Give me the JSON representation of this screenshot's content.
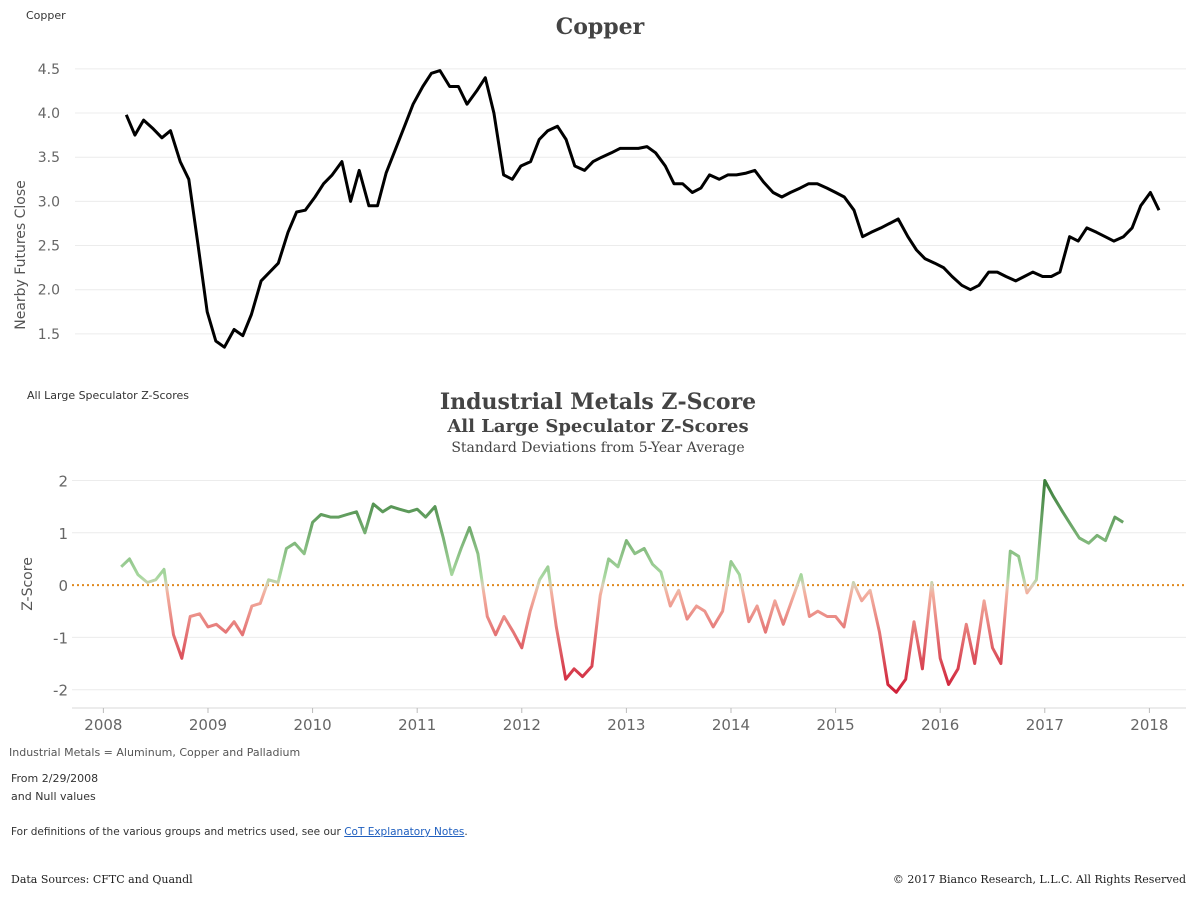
{
  "top_label": "Copper",
  "mid_label": "All Large Speculator Z-Scores",
  "footer": {
    "definition": "Industrial Metals = Aluminum, Copper and Palladium",
    "from_line1": "From 2/29/2008",
    "from_line2": "and Null values",
    "notes_prefix": "For definitions of the various groups and metrics used, see our ",
    "notes_link": "CoT Explanatory Notes",
    "notes_suffix": ".",
    "sources": "Data Sources: CFTC and Quandl",
    "copyright": "© 2017 Bianco Research, L.L.C. All Rights Reserved"
  },
  "colors": {
    "copper_line": "#000000",
    "zero_line": "#e08a1e",
    "positive_dark": "#3a7d3a",
    "positive_light": "#a8d8a0",
    "negative_light": "#f3b0a0",
    "negative_dark": "#d0223a"
  },
  "chart_data": [
    {
      "type": "line",
      "title": "Copper",
      "ylabel": "Nearby Futures Close",
      "xlabel": "",
      "ylim": [
        1.25,
        4.6
      ],
      "xlim": [
        2008.0,
        2018.0
      ],
      "yticks": [
        "1.5",
        "2.0",
        "2.5",
        "3.0",
        "3.5",
        "4.0",
        "4.5"
      ],
      "grid": true,
      "series": [
        {
          "x": [
            2008.17,
            2008.25,
            2008.33,
            2008.42,
            2008.5,
            2008.58,
            2008.67,
            2008.75,
            2008.83,
            2008.92,
            2009.0,
            2009.08,
            2009.17,
            2009.25,
            2009.33,
            2009.42,
            2009.5,
            2009.58,
            2009.67,
            2009.75,
            2009.83,
            2009.92,
            2010.0,
            2010.08,
            2010.17,
            2010.25,
            2010.33,
            2010.42,
            2010.5,
            2010.58,
            2010.67,
            2010.75,
            2010.83,
            2010.92,
            2011.0,
            2011.08,
            2011.17,
            2011.25,
            2011.33,
            2011.42,
            2011.5,
            2011.58,
            2011.67,
            2011.75,
            2011.83,
            2011.92,
            2012.0,
            2012.08,
            2012.17,
            2012.25,
            2012.33,
            2012.42,
            2012.5,
            2012.58,
            2012.67,
            2012.75,
            2012.83,
            2012.92,
            2013.0,
            2013.08,
            2013.17,
            2013.25,
            2013.33,
            2013.42,
            2013.5,
            2013.58,
            2013.67,
            2013.75,
            2013.83,
            2013.92,
            2014.0,
            2014.08,
            2014.17,
            2014.25,
            2014.33,
            2014.42,
            2014.5,
            2014.58,
            2014.67,
            2014.75,
            2014.83,
            2014.92,
            2015.0,
            2015.08,
            2015.17,
            2015.25,
            2015.33,
            2015.42,
            2015.5,
            2015.58,
            2015.67,
            2015.75,
            2015.83,
            2015.92,
            2016.0,
            2016.08,
            2016.17,
            2016.25,
            2016.33,
            2016.42,
            2016.5,
            2016.58,
            2016.67,
            2016.75,
            2016.83,
            2016.92,
            2017.0,
            2017.08,
            2017.17,
            2017.25,
            2017.33,
            2017.42,
            2017.5,
            2017.58,
            2017.67,
            2017.75
          ],
          "values": [
            3.98,
            3.75,
            3.92,
            3.82,
            3.72,
            3.8,
            3.45,
            3.25,
            2.55,
            1.75,
            1.42,
            1.35,
            1.55,
            1.48,
            1.72,
            2.1,
            2.2,
            2.3,
            2.65,
            2.88,
            2.9,
            3.05,
            3.2,
            3.3,
            3.45,
            3.0,
            3.35,
            2.95,
            2.95,
            3.32,
            3.6,
            3.85,
            4.1,
            4.3,
            4.45,
            4.48,
            4.3,
            4.3,
            4.1,
            4.25,
            4.4,
            4.0,
            3.3,
            3.25,
            3.4,
            3.45,
            3.7,
            3.8,
            3.85,
            3.7,
            3.4,
            3.35,
            3.45,
            3.5,
            3.55,
            3.6,
            3.6,
            3.6,
            3.62,
            3.55,
            3.4,
            3.2,
            3.2,
            3.1,
            3.15,
            3.3,
            3.25,
            3.3,
            3.3,
            3.32,
            3.35,
            3.22,
            3.1,
            3.05,
            3.1,
            3.15,
            3.2,
            3.2,
            3.15,
            3.1,
            3.05,
            2.9,
            2.6,
            2.65,
            2.7,
            2.75,
            2.8,
            2.6,
            2.45,
            2.35,
            2.3,
            2.25,
            2.15,
            2.05,
            2.0,
            2.05,
            2.2,
            2.2,
            2.15,
            2.1,
            2.15,
            2.2,
            2.15,
            2.15,
            2.2,
            2.6,
            2.55,
            2.7,
            2.65,
            2.6,
            2.55,
            2.6,
            2.7,
            2.95,
            3.1,
            2.9
          ]
        }
      ]
    },
    {
      "type": "line",
      "title": "Industrial Metals Z-Score",
      "subtitle": "All Large Speculator Z-Scores",
      "subtitle2": "Standard Deviations from 5-Year Average",
      "ylabel": "Z-Score",
      "xlabel": "",
      "ylim": [
        -2.35,
        2.2
      ],
      "xlim": [
        2007.7,
        2018.35
      ],
      "yticks": [
        "2",
        "1",
        "0",
        "-1",
        "-2"
      ],
      "ytick_values": [
        2,
        1,
        0,
        -1,
        -2
      ],
      "xticks": [
        "2008",
        "2009",
        "2010",
        "2011",
        "2012",
        "2013",
        "2014",
        "2015",
        "2016",
        "2017",
        "2018"
      ],
      "xtick_values": [
        2008,
        2009,
        2010,
        2011,
        2012,
        2013,
        2014,
        2015,
        2016,
        2017,
        2018
      ],
      "zero_reference_line": true,
      "grid": true,
      "series": [
        {
          "x": [
            2008.17,
            2008.25,
            2008.33,
            2008.42,
            2008.5,
            2008.58,
            2008.67,
            2008.75,
            2008.83,
            2008.92,
            2009.0,
            2009.08,
            2009.17,
            2009.25,
            2009.33,
            2009.42,
            2009.5,
            2009.58,
            2009.67,
            2009.75,
            2009.83,
            2009.92,
            2010.0,
            2010.08,
            2010.17,
            2010.25,
            2010.33,
            2010.42,
            2010.5,
            2010.58,
            2010.67,
            2010.75,
            2010.83,
            2010.92,
            2011.0,
            2011.08,
            2011.17,
            2011.25,
            2011.33,
            2011.42,
            2011.5,
            2011.58,
            2011.67,
            2011.75,
            2011.83,
            2011.92,
            2012.0,
            2012.08,
            2012.17,
            2012.25,
            2012.33,
            2012.42,
            2012.5,
            2012.58,
            2012.67,
            2012.75,
            2012.83,
            2012.92,
            2013.0,
            2013.08,
            2013.17,
            2013.25,
            2013.33,
            2013.42,
            2013.5,
            2013.58,
            2013.67,
            2013.75,
            2013.83,
            2013.92,
            2014.0,
            2014.08,
            2014.17,
            2014.25,
            2014.33,
            2014.42,
            2014.5,
            2014.58,
            2014.67,
            2014.75,
            2014.83,
            2014.92,
            2015.0,
            2015.08,
            2015.17,
            2015.25,
            2015.33,
            2015.42,
            2015.5,
            2015.58,
            2015.67,
            2015.75,
            2015.83,
            2015.92,
            2016.0,
            2016.08,
            2016.17,
            2016.25,
            2016.33,
            2016.42,
            2016.5,
            2016.58,
            2016.67,
            2016.75,
            2016.83,
            2016.92,
            2017.0,
            2017.08,
            2017.17,
            2017.25,
            2017.33,
            2017.42,
            2017.5,
            2017.58,
            2017.67,
            2017.75
          ],
          "values": [
            0.35,
            0.5,
            0.2,
            0.05,
            0.1,
            0.3,
            -0.95,
            -1.4,
            -0.6,
            -0.55,
            -0.8,
            -0.75,
            -0.9,
            -0.7,
            -0.95,
            -0.4,
            -0.35,
            0.1,
            0.05,
            0.7,
            0.8,
            0.6,
            1.2,
            1.35,
            1.3,
            1.3,
            1.35,
            1.4,
            1.0,
            1.55,
            1.4,
            1.5,
            1.45,
            1.4,
            1.45,
            1.3,
            1.5,
            0.9,
            0.2,
            0.7,
            1.1,
            0.6,
            -0.6,
            -0.95,
            -0.6,
            -0.9,
            -1.2,
            -0.5,
            0.1,
            0.35,
            -0.8,
            -1.8,
            -1.6,
            -1.75,
            -1.55,
            -0.2,
            0.5,
            0.35,
            0.85,
            0.6,
            0.7,
            0.4,
            0.25,
            -0.4,
            -0.1,
            -0.65,
            -0.4,
            -0.5,
            -0.8,
            -0.5,
            0.45,
            0.2,
            -0.7,
            -0.4,
            -0.9,
            -0.3,
            -0.75,
            -0.3,
            0.2,
            -0.6,
            -0.5,
            -0.6,
            -0.6,
            -0.8,
            0.05,
            -0.3,
            -0.1,
            -0.9,
            -1.9,
            -2.05,
            -1.8,
            -0.7,
            -1.6,
            0.05,
            -1.4,
            -1.9,
            -1.6,
            -0.75,
            -1.5,
            -0.3,
            -1.2,
            -1.5,
            0.65,
            0.55,
            -0.15,
            0.1,
            2.0,
            1.7,
            1.4,
            1.15,
            0.9,
            0.8,
            0.95,
            0.85,
            1.3,
            1.2
          ]
        }
      ]
    }
  ]
}
